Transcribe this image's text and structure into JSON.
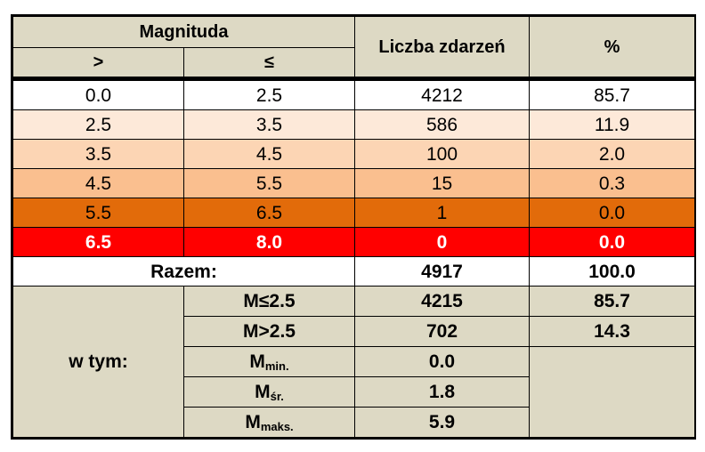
{
  "header": {
    "magnitude": "Magnituda",
    "gt": ">",
    "le": "≤",
    "count": "Liczba zdarzeń",
    "percent": "%"
  },
  "rows": [
    {
      "from": "0.0",
      "to": "2.5",
      "count": "4212",
      "pct": "85.7"
    },
    {
      "from": "2.5",
      "to": "3.5",
      "count": "586",
      "pct": "11.9"
    },
    {
      "from": "3.5",
      "to": "4.5",
      "count": "100",
      "pct": "2.0"
    },
    {
      "from": "4.5",
      "to": "5.5",
      "count": "15",
      "pct": "0.3"
    },
    {
      "from": "5.5",
      "to": "6.5",
      "count": "1",
      "pct": "0.0"
    },
    {
      "from": "6.5",
      "to": "8.0",
      "count": "0",
      "pct": "0.0"
    }
  ],
  "total": {
    "label": "Razem:",
    "count": "4917",
    "pct": "100.0"
  },
  "including": {
    "label": "w tym:",
    "le25": {
      "label": "M≤2.5",
      "count": "4215",
      "pct": "85.7"
    },
    "gt25": {
      "label": "M>2.5",
      "count": "702",
      "pct": "14.3"
    },
    "min": {
      "base": "M",
      "sub": "min.",
      "value": "0.0"
    },
    "avg": {
      "base": "M",
      "sub": "śr.",
      "value": "1.8"
    },
    "max": {
      "base": "M",
      "sub": "maks.",
      "value": "5.9"
    }
  },
  "colors": {
    "header_bg": "#ddd9c4",
    "row_colors": [
      "#ffffff",
      "#fde9d9",
      "#fcd5b4",
      "#fabf8f",
      "#e26b0a",
      "#ff0000"
    ]
  }
}
